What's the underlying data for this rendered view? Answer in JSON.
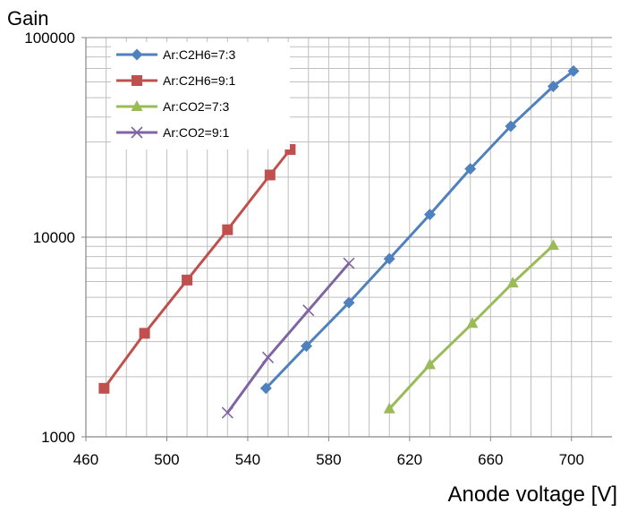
{
  "chart_data": {
    "type": "line",
    "title": "",
    "ylabel": "Gain",
    "xlabel": "Anode voltage [V]",
    "x_range": [
      460,
      720
    ],
    "y_range": [
      1000,
      100000
    ],
    "y_scale": "log",
    "x_ticks": [
      "460",
      "500",
      "540",
      "580",
      "620",
      "660",
      "700"
    ],
    "y_ticks": [
      "1000",
      "10000",
      "100000"
    ],
    "grid": true,
    "legend_position": "top-left",
    "series": [
      {
        "name": "Ar:C2H6=7:3",
        "color": "#4F81BD",
        "marker": "diamond",
        "points": [
          [
            549,
            1750
          ],
          [
            569,
            2850
          ],
          [
            590,
            4700
          ],
          [
            610,
            7800
          ],
          [
            630,
            13000
          ],
          [
            650,
            22000
          ],
          [
            670,
            36000
          ],
          [
            691,
            57000
          ],
          [
            701,
            68000
          ]
        ]
      },
      {
        "name": "Ar:C2H6=9:1",
        "color": "#C0504D",
        "marker": "square",
        "points": [
          [
            469,
            1750
          ],
          [
            489,
            3300
          ],
          [
            510,
            6100
          ],
          [
            530,
            10900
          ],
          [
            551,
            20500
          ],
          [
            561,
            27500
          ]
        ]
      },
      {
        "name": "Ar:CO2=7:3",
        "color": "#9BBB59",
        "marker": "triangle",
        "points": [
          [
            610,
            1380
          ],
          [
            630,
            2300
          ],
          [
            651,
            3700
          ],
          [
            671,
            5900
          ],
          [
            691,
            9100
          ]
        ]
      },
      {
        "name": "Ar:CO2=9:1",
        "color": "#8064A2",
        "marker": "x",
        "points": [
          [
            530,
            1320
          ],
          [
            550,
            2500
          ],
          [
            570,
            4300
          ],
          [
            590,
            7400
          ]
        ]
      }
    ]
  }
}
